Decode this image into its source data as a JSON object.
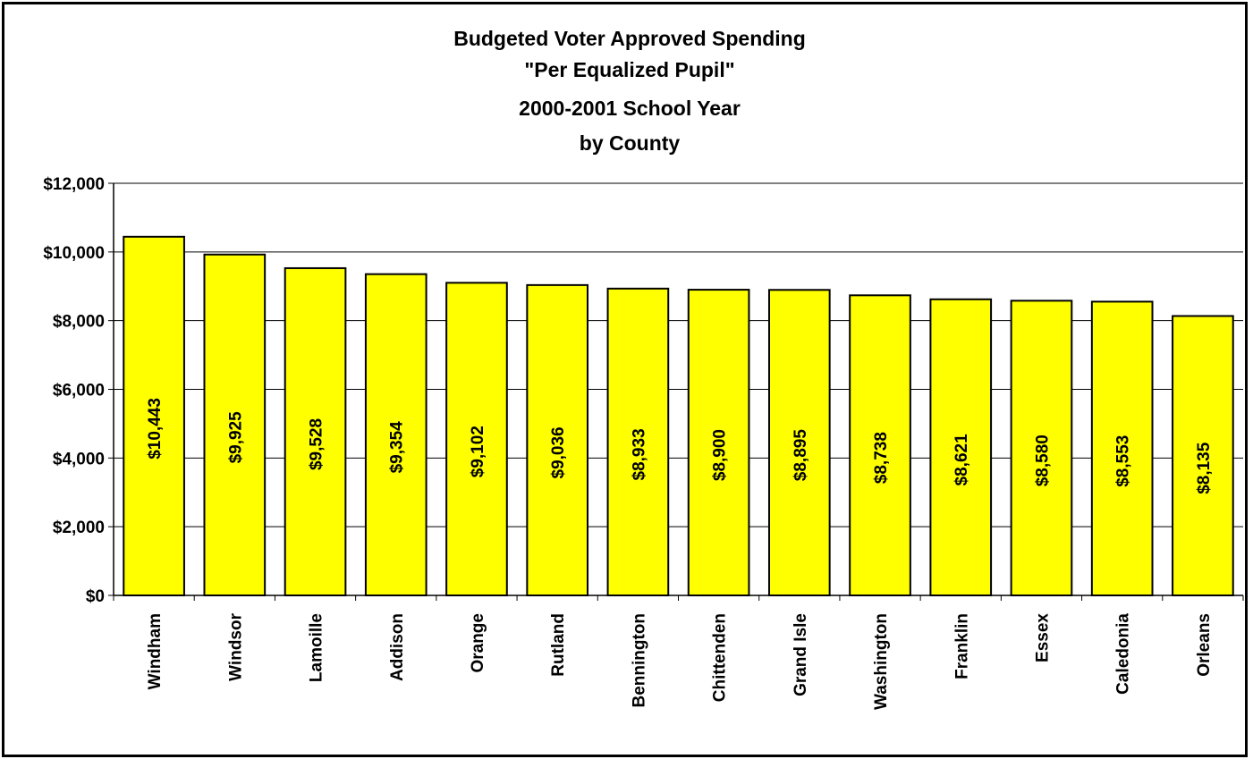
{
  "chart_data": {
    "type": "bar",
    "title_lines": [
      "Budgeted Voter Approved Spending",
      "\"Per Equalized Pupil\"",
      "2000-2001 School Year",
      "by County"
    ],
    "categories": [
      "Windham",
      "Windsor",
      "Lamoille",
      "Addison",
      "Orange",
      "Rutland",
      "Bennington",
      "Chittenden",
      "Grand Isle",
      "Washington",
      "Franklin",
      "Essex",
      "Caledonia",
      "Orleans"
    ],
    "values": [
      10443,
      9925,
      9528,
      9354,
      9102,
      9036,
      8933,
      8900,
      8895,
      8738,
      8621,
      8580,
      8553,
      8135
    ],
    "data_labels": [
      "$10,443",
      "$9,925",
      "$9,528",
      "$9,354",
      "$9,102",
      "$9,036",
      "$8,933",
      "$8,900",
      "$8,895",
      "$8,738",
      "$8,621",
      "$8,580",
      "$8,553",
      "$8,135"
    ],
    "y_ticks": [
      0,
      2000,
      4000,
      6000,
      8000,
      10000,
      12000
    ],
    "y_tick_labels": [
      "$0",
      "$2,000",
      "$4,000",
      "$6,000",
      "$8,000",
      "$10,000",
      "$12,000"
    ],
    "ylim": [
      0,
      12000
    ],
    "xlabel": "",
    "ylabel": "",
    "grid": true,
    "legend": "none",
    "colors": {
      "bar_fill": "#ffff00",
      "bar_stroke": "#000000",
      "grid": "#000000",
      "background": "#ffffff"
    }
  }
}
